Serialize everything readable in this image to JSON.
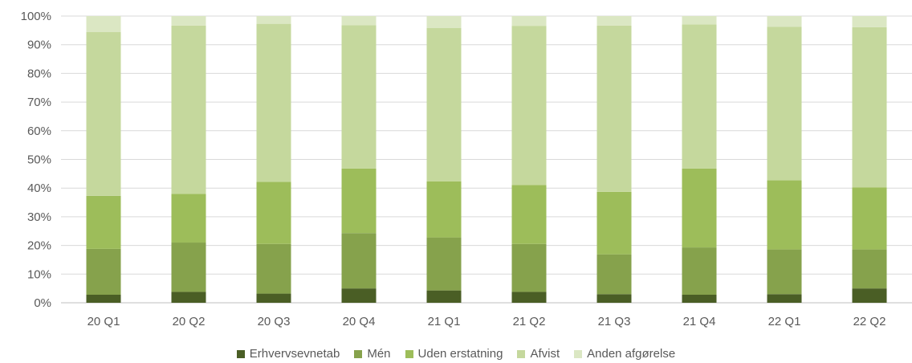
{
  "chart_data": {
    "type": "bar",
    "stacked": true,
    "percent_stacked": true,
    "title": "",
    "xlabel": "",
    "ylabel": "",
    "ylim": [
      0,
      100
    ],
    "y_ticks": [
      "0%",
      "10%",
      "20%",
      "30%",
      "40%",
      "50%",
      "60%",
      "70%",
      "80%",
      "90%",
      "100%"
    ],
    "grid": true,
    "legend_position": "bottom",
    "categories": [
      "20 Q1",
      "20 Q2",
      "20 Q3",
      "20 Q4",
      "21 Q1",
      "21 Q2",
      "21 Q3",
      "21 Q4",
      "22 Q1",
      "22 Q2"
    ],
    "series": [
      {
        "name": "Erhvervsevnetab",
        "color": "#4a5e25",
        "values": [
          2.8,
          3.8,
          3.2,
          5.0,
          4.3,
          3.8,
          3.0,
          2.8,
          3.0,
          5.0
        ]
      },
      {
        "name": "Mén",
        "color": "#86a24c",
        "values": [
          16.0,
          17.2,
          17.3,
          19.3,
          18.5,
          16.7,
          13.9,
          16.5,
          15.6,
          13.6
        ]
      },
      {
        "name": "Uden erstatning",
        "color": "#9dbd5a",
        "values": [
          18.5,
          17.0,
          21.7,
          22.5,
          19.5,
          20.6,
          21.8,
          27.5,
          24.1,
          21.6
        ]
      },
      {
        "name": "Afvist",
        "color": "#c5d89d",
        "values": [
          57.1,
          58.7,
          55.1,
          50.0,
          53.5,
          55.5,
          58.0,
          50.3,
          53.6,
          55.9
        ]
      },
      {
        "name": "Anden afgørelse",
        "color": "#dbe7c3",
        "values": [
          5.6,
          3.3,
          2.7,
          3.2,
          4.2,
          3.4,
          3.3,
          2.9,
          3.7,
          3.9
        ]
      }
    ]
  }
}
